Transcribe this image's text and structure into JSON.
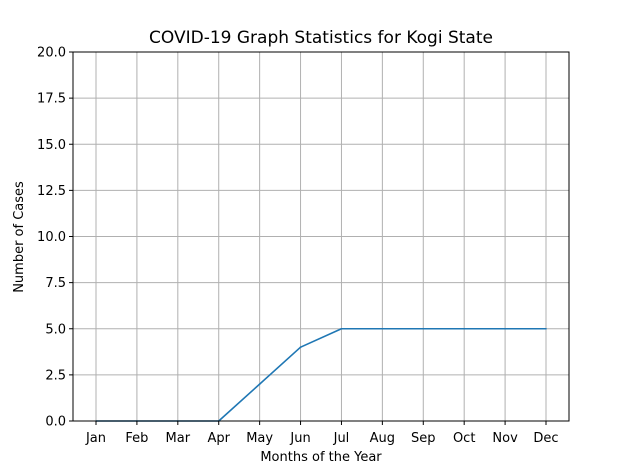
{
  "chart_data": {
    "type": "line",
    "title": "COVID-19 Graph Statistics for Kogi State",
    "xlabel": "Months of the Year",
    "ylabel": "Number of Cases",
    "categories": [
      "Jan",
      "Feb",
      "Mar",
      "Apr",
      "May",
      "Jun",
      "Jul",
      "Aug",
      "Sep",
      "Oct",
      "Nov",
      "Dec"
    ],
    "series": [
      {
        "values": [
          0,
          0,
          0,
          0,
          2,
          4,
          5,
          5,
          5,
          5,
          5,
          5
        ]
      }
    ],
    "ylim": [
      0,
      20
    ],
    "yticks": [
      "0.0",
      "2.5",
      "5.0",
      "7.5",
      "10.0",
      "12.5",
      "15.0",
      "17.5",
      "20.0"
    ],
    "grid": true,
    "line_color": "#1f77b4"
  }
}
